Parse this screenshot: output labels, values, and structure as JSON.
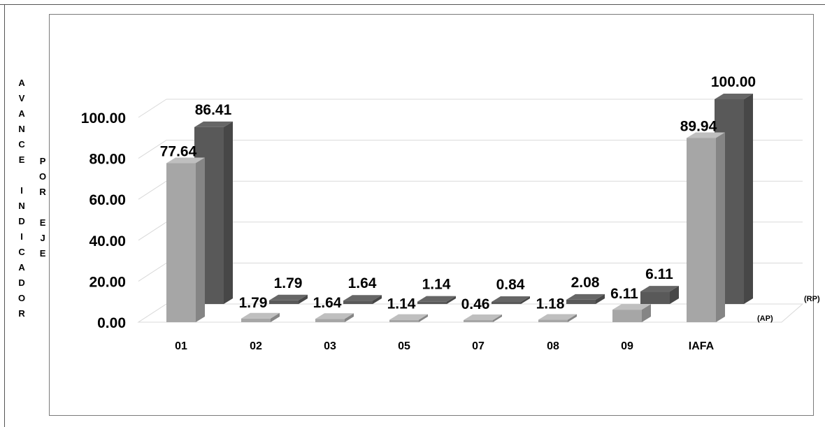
{
  "chart_data": {
    "type": "bar",
    "categories": [
      "01",
      "02",
      "03",
      "05",
      "07",
      "08",
      "09",
      "IAFA"
    ],
    "series": [
      {
        "name": "(AP)",
        "values": [
          77.64,
          1.79,
          1.64,
          1.14,
          0.46,
          1.18,
          6.11,
          89.94
        ],
        "color": "#a6a6a6"
      },
      {
        "name": "(RP)",
        "values": [
          86.41,
          1.79,
          1.64,
          1.14,
          0.84,
          2.08,
          6.11,
          100.0
        ],
        "color": "#595959"
      }
    ],
    "y_tick_labels": [
      "0.00",
      "20.00",
      "40.00",
      "60.00",
      "80.00",
      "100.00"
    ],
    "ylim": [
      0,
      100
    ],
    "grid": true,
    "ylabel_outer": "AVANCE INDICADOR",
    "ylabel_inner": "POR EJE",
    "data_labels_ap": [
      "77.64",
      "1.79",
      "1.64",
      "1.14",
      "0.46",
      "1.18",
      "6.11",
      "89.94"
    ],
    "data_labels_rp": [
      "86.41",
      "1.79",
      "1.64",
      "1.14",
      "0.84",
      "2.08",
      "6.11",
      "100.00"
    ]
  }
}
